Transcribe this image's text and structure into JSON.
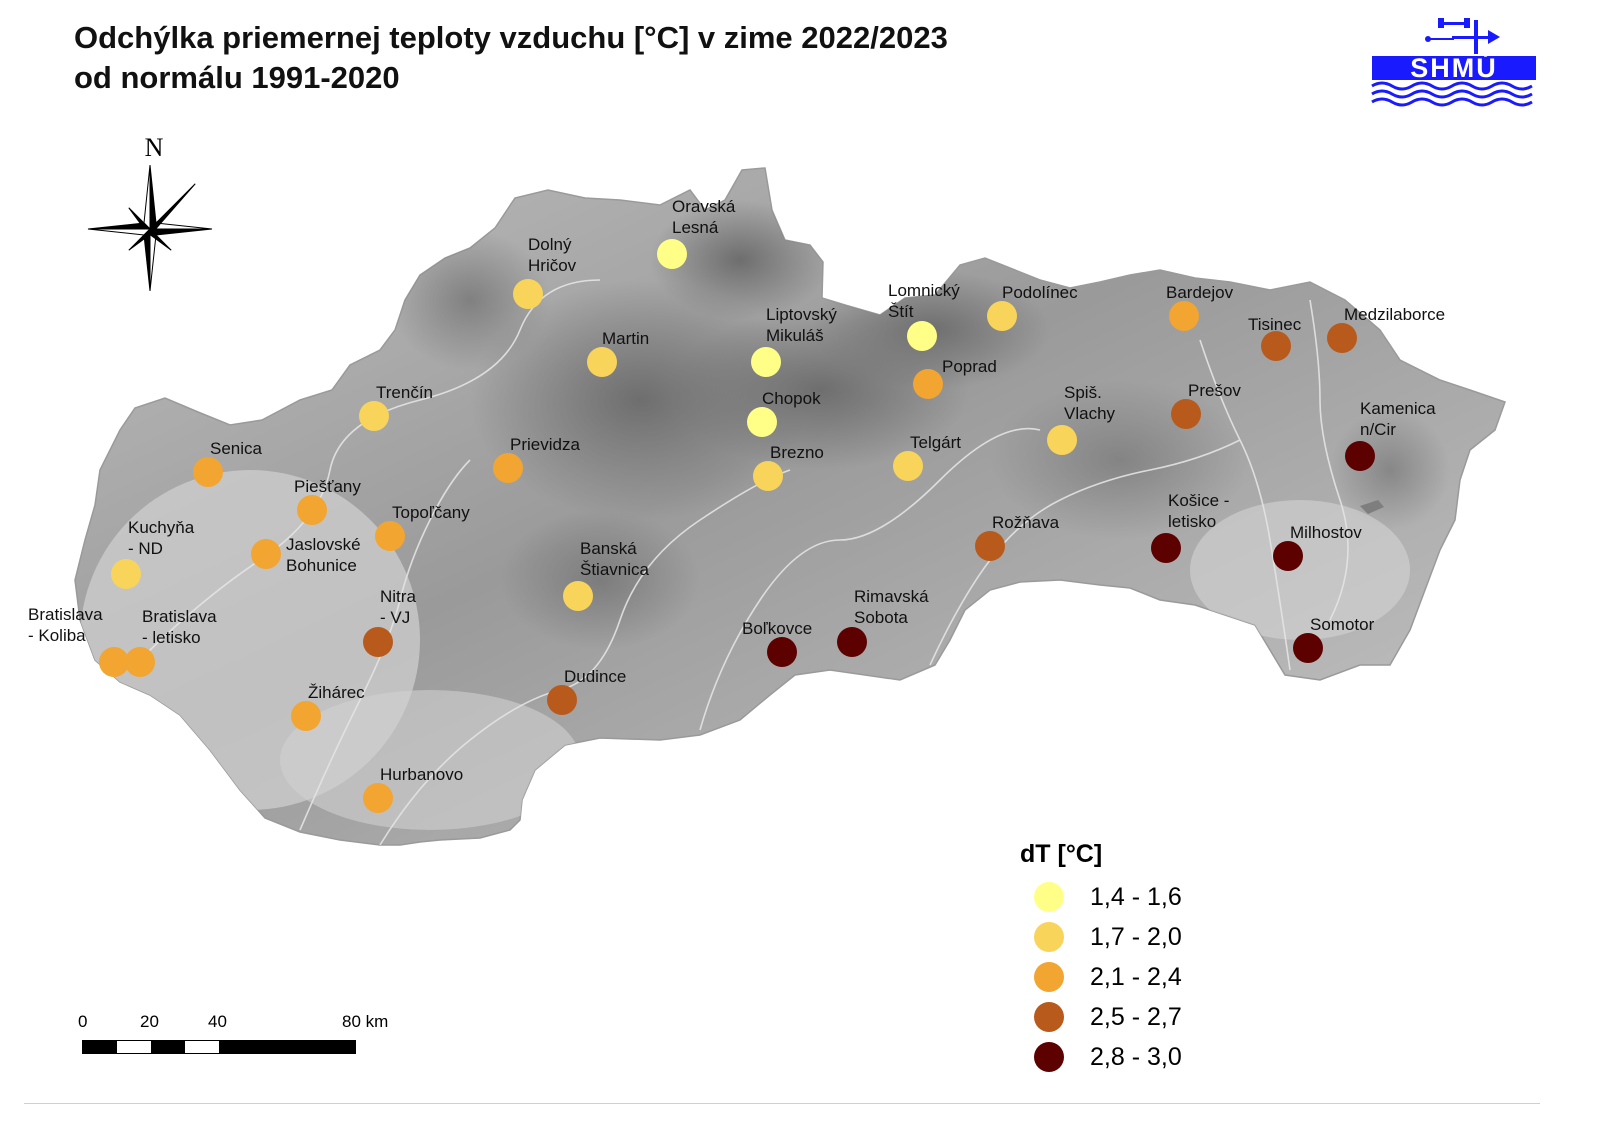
{
  "title": {
    "line1": "Odchýlka priemernej teploty vzduchu [°C] v zime 2022/2023",
    "line2": "od normálu 1991-2020"
  },
  "logo": {
    "text": "SHMÚ"
  },
  "compass": {
    "north_label": "N"
  },
  "legend": {
    "title": "dT  [°C]",
    "classes": [
      {
        "label": "1,4 - 1,6",
        "color": "#ffff88"
      },
      {
        "label": "1,7 - 2,0",
        "color": "#f9d45a"
      },
      {
        "label": "2,1 - 2,4",
        "color": "#f2a531"
      },
      {
        "label": "2,5 - 2,7",
        "color": "#b85a1c"
      },
      {
        "label": "2,8 - 3,0",
        "color": "#5c0000"
      }
    ]
  },
  "scale": {
    "labels": [
      "0",
      "20",
      "40",
      "80 km"
    ]
  },
  "stations": [
    {
      "name": [
        "Oravská",
        "Lesná"
      ],
      "class": 0
    },
    {
      "name": [
        "Dolný",
        "Hričov"
      ],
      "class": 1
    },
    {
      "name": [
        "Martin"
      ],
      "class": 1
    },
    {
      "name": [
        "Liptovský",
        "Mikuláš"
      ],
      "class": 0
    },
    {
      "name": [
        "Chopok"
      ],
      "class": 0
    },
    {
      "name": [
        "Brezno"
      ],
      "class": 1
    },
    {
      "name": [
        "Lomnický",
        "Štít"
      ],
      "class": 0
    },
    {
      "name": [
        "Podolínec"
      ],
      "class": 1
    },
    {
      "name": [
        "Poprad"
      ],
      "class": 2
    },
    {
      "name": [
        "Telgárt"
      ],
      "class": 1
    },
    {
      "name": [
        "Bardejov"
      ],
      "class": 2
    },
    {
      "name": [
        "Tisinec"
      ],
      "class": 3
    },
    {
      "name": [
        "Medzilaborce"
      ],
      "class": 3
    },
    {
      "name": [
        "Prešov"
      ],
      "class": 3
    },
    {
      "name": [
        "Spiš.",
        "Vlachy"
      ],
      "class": 1
    },
    {
      "name": [
        "Kamenica",
        "n/Cir"
      ],
      "class": 4
    },
    {
      "name": [
        "Košice -",
        "letisko"
      ],
      "class": 4
    },
    {
      "name": [
        "Milhostov"
      ],
      "class": 4
    },
    {
      "name": [
        "Somotor"
      ],
      "class": 4
    },
    {
      "name": [
        "Rožňava"
      ],
      "class": 3
    },
    {
      "name": [
        "Rimavská",
        "Sobota"
      ],
      "class": 4
    },
    {
      "name": [
        "Boľkovce"
      ],
      "class": 4
    },
    {
      "name": [
        "Banská",
        "Štiavnica"
      ],
      "class": 1
    },
    {
      "name": [
        "Dudince"
      ],
      "class": 3
    },
    {
      "name": [
        "Trenčín"
      ],
      "class": 1
    },
    {
      "name": [
        "Prievidza"
      ],
      "class": 2
    },
    {
      "name": [
        "Senica"
      ],
      "class": 2
    },
    {
      "name": [
        "Piešťany"
      ],
      "class": 2
    },
    {
      "name": [
        "Topoľčany"
      ],
      "class": 2
    },
    {
      "name": [
        "Jaslovské",
        "Bohunice"
      ],
      "class": 2
    },
    {
      "name": [
        "Kuchyňa",
        "- ND"
      ],
      "class": 1
    },
    {
      "name": [
        "Nitra",
        "- VJ"
      ],
      "class": 3
    },
    {
      "name": [
        "Bratislava",
        "- Koliba"
      ],
      "class": 2
    },
    {
      "name": [
        "Bratislava",
        "- letisko"
      ],
      "class": 2
    },
    {
      "name": [
        "Žihárec"
      ],
      "class": 2
    },
    {
      "name": [
        "Hurbanovo"
      ],
      "class": 2
    }
  ]
}
